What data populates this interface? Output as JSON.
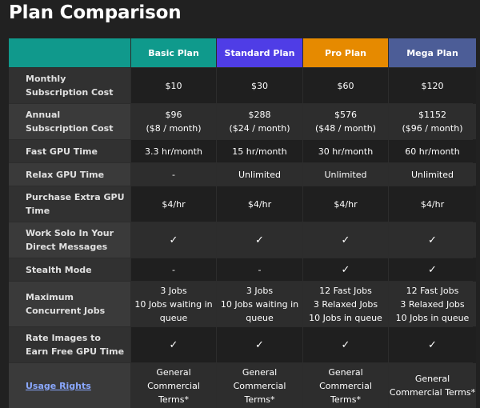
{
  "page": {
    "title": "Plan Comparison"
  },
  "colors": {
    "corner": "#10998c",
    "basic": "#0f9a8c",
    "standard": "#4f3de6",
    "pro": "#e68a00",
    "mega": "#4c5d97",
    "link": "#8aa8ff"
  },
  "plans": [
    {
      "name": "Basic Plan"
    },
    {
      "name": "Standard Plan"
    },
    {
      "name": "Pro Plan"
    },
    {
      "name": "Mega Plan"
    }
  ],
  "rows": [
    {
      "label": "Monthly Subscription Cost",
      "values": [
        "$10",
        "$30",
        "$60",
        "$120"
      ]
    },
    {
      "label": "Annual Subscription Cost",
      "values": [
        "$96\n($8 / month)",
        "$288\n($24 / month)",
        "$576\n($48 / month)",
        "$1152\n($96 / month)"
      ]
    },
    {
      "label": "Fast GPU Time",
      "values": [
        "3.3 hr/month",
        "15 hr/month",
        "30 hr/month",
        "60 hr/month"
      ]
    },
    {
      "label": "Relax GPU Time",
      "values": [
        "-",
        "Unlimited",
        "Unlimited",
        "Unlimited"
      ]
    },
    {
      "label": "Purchase Extra GPU Time",
      "values": [
        "$4/hr",
        "$4/hr",
        "$4/hr",
        "$4/hr"
      ]
    },
    {
      "label": "Work Solo In Your Direct Messages",
      "values": [
        "✓",
        "✓",
        "✓",
        "✓"
      ]
    },
    {
      "label": "Stealth Mode",
      "values": [
        "-",
        "-",
        "✓",
        "✓"
      ]
    },
    {
      "label": "Maximum Concurrent Jobs",
      "values": [
        "3 Jobs\n10 Jobs waiting in queue",
        "3 Jobs\n10 Jobs waiting in queue",
        "12 Fast Jobs\n3 Relaxed Jobs\n10 Jobs in queue",
        "12 Fast Jobs\n3 Relaxed Jobs\n10 Jobs in queue"
      ]
    },
    {
      "label": "Rate Images to Earn Free GPU Time",
      "values": [
        "✓",
        "✓",
        "✓",
        "✓"
      ]
    },
    {
      "label": "Usage Rights",
      "is_link": true,
      "values": [
        "General Commercial Terms*",
        "General Commercial Terms*",
        "General Commercial Terms*",
        "General Commercial Terms*"
      ]
    }
  ]
}
